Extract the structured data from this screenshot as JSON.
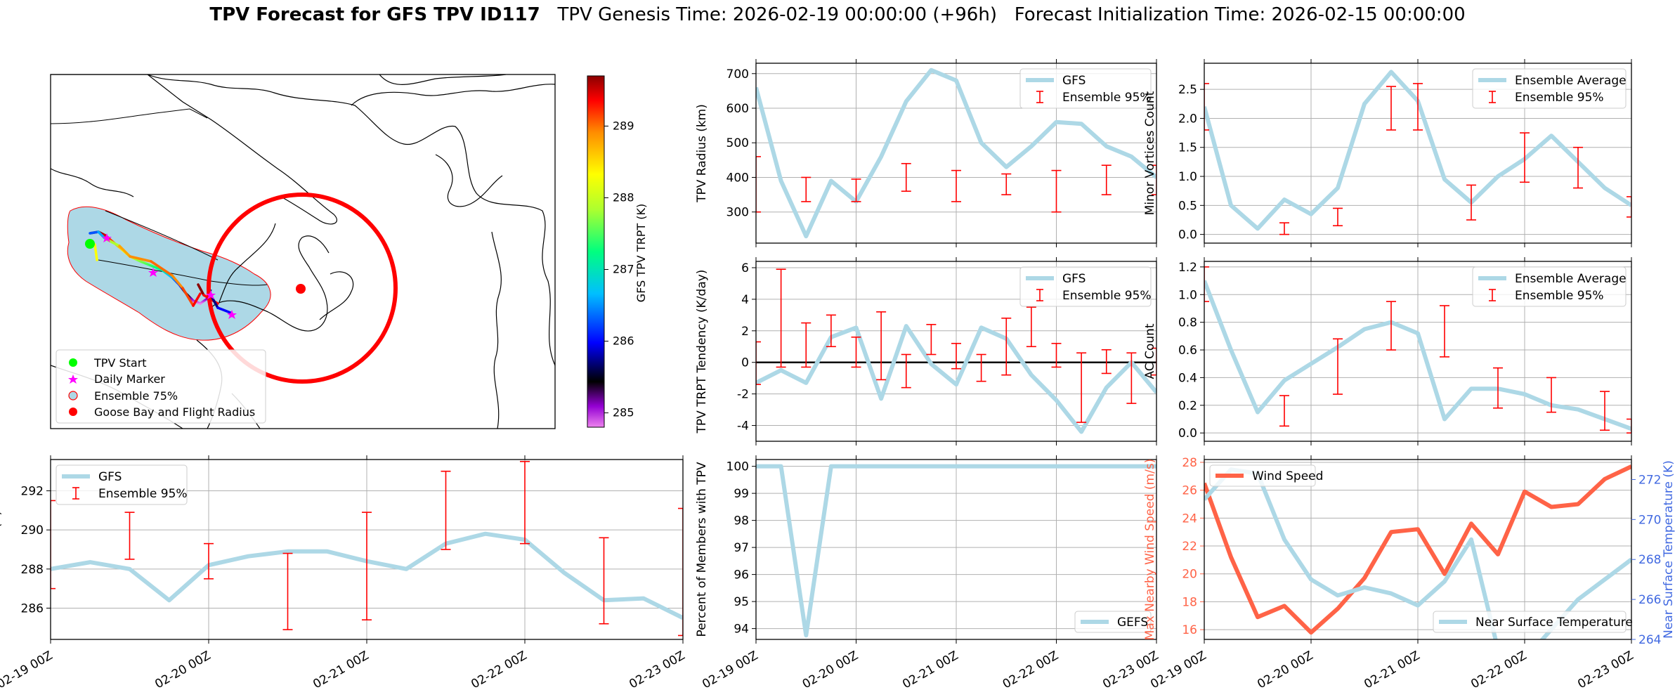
{
  "title": {
    "bold": "TPV Forecast for GFS TPV ID117",
    "genesis": "TPV Genesis Time: 2026-02-19 00:00:00 (+96h)",
    "init": "Forecast Initialization Time: 2026-02-15 00:00:00"
  },
  "colors": {
    "gfs_line": "#add8e6",
    "error_bar": "#ff0000",
    "wind_line": "#ff6347",
    "temp_axis": "#4169e1",
    "ocean": "#add8e6",
    "radius_circle": "#ff0000",
    "start_marker": "#00ff00",
    "daily_marker": "#ff00ff"
  },
  "map": {
    "legend": [
      "TPV Start",
      "Daily Marker",
      "Ensemble 75%",
      "Goose Bay and Flight Radius"
    ],
    "colorbar": {
      "label": "GFS TPV TRPT (K)",
      "ticks": [
        285,
        286,
        287,
        288,
        289
      ],
      "range": [
        284.8,
        289.7
      ]
    }
  },
  "time_axis": [
    "02-19 00Z",
    "02-20 00Z",
    "02-21 00Z",
    "02-22 00Z",
    "02-23 00Z"
  ],
  "chart_data": [
    {
      "id": "radius",
      "type": "line",
      "ylabel": "TPV Radius (km)",
      "ylim": [
        210,
        730
      ],
      "yticks": [
        300,
        400,
        500,
        600,
        700
      ],
      "series": [
        {
          "name": "GFS",
          "values": [
            660,
            390,
            230,
            390,
            330,
            460,
            620,
            710,
            680,
            500,
            430,
            490,
            560,
            555,
            490,
            460,
            400
          ]
        }
      ],
      "errorbars": {
        "name": "Ensemble 95%",
        "x": [
          0,
          2,
          4,
          6,
          8,
          10,
          12,
          14,
          16
        ],
        "low": [
          300,
          330,
          330,
          360,
          330,
          350,
          300,
          350,
          350
        ],
        "high": [
          460,
          400,
          395,
          440,
          420,
          410,
          420,
          435,
          435
        ]
      },
      "legend": [
        "GFS",
        "Ensemble 95%"
      ]
    },
    {
      "id": "minor",
      "type": "line",
      "ylabel": "Minor Vortices Count",
      "ylim": [
        -0.15,
        2.95
      ],
      "yticks": [
        0.0,
        0.5,
        1.0,
        1.5,
        2.0,
        2.5
      ],
      "series": [
        {
          "name": "Ensemble Average",
          "values": [
            2.2,
            0.5,
            0.1,
            0.6,
            0.35,
            0.8,
            2.25,
            2.8,
            2.3,
            0.95,
            0.55,
            1.0,
            1.3,
            1.7,
            1.25,
            0.8,
            0.5
          ]
        }
      ],
      "errorbars": {
        "name": "Ensemble 95%",
        "x": [
          0,
          3,
          5,
          7,
          8,
          10,
          12,
          14,
          16
        ],
        "low": [
          1.8,
          0.0,
          0.15,
          1.8,
          1.8,
          0.25,
          0.9,
          0.8,
          0.3
        ],
        "high": [
          2.6,
          0.2,
          0.45,
          2.55,
          2.6,
          0.85,
          1.75,
          1.5,
          0.65
        ]
      },
      "legend": [
        "Ensemble Average",
        "Ensemble 95%"
      ]
    },
    {
      "id": "tendency",
      "type": "line",
      "ylabel": "TPV TRPT Tendency (K/day)",
      "ylim": [
        -5.0,
        6.4
      ],
      "yticks": [
        -4,
        -2,
        0,
        2,
        4,
        6
      ],
      "series": [
        {
          "name": "GFS",
          "values": [
            -1.3,
            -0.5,
            -1.3,
            1.6,
            2.2,
            -2.3,
            2.3,
            -0.1,
            -1.4,
            2.2,
            1.5,
            -0.8,
            -2.4,
            -4.4,
            -1.6,
            0.0,
            -1.9
          ]
        }
      ],
      "errorbars": {
        "name": "Ensemble 95%",
        "x": [
          0,
          1,
          2,
          3,
          4,
          5,
          6,
          7,
          8,
          9,
          10,
          11,
          12,
          13,
          14,
          15,
          16
        ],
        "low": [
          -1.4,
          -0.3,
          -0.3,
          1.0,
          -0.3,
          -1.1,
          -1.6,
          0.5,
          -0.4,
          -1.2,
          -0.8,
          1.0,
          -0.3,
          -3.8,
          -0.7,
          -2.6,
          -0.8
        ],
        "high": [
          1.3,
          5.9,
          2.5,
          3.0,
          1.6,
          3.2,
          0.5,
          2.4,
          1.2,
          0.5,
          2.8,
          3.5,
          1.2,
          0.6,
          0.8,
          0.6,
          0.9
        ]
      },
      "zero_line": true,
      "legend": [
        "GFS",
        "Ensemble 95%"
      ]
    },
    {
      "id": "ac",
      "type": "line",
      "ylabel": "AC Count",
      "ylim": [
        -0.06,
        1.24
      ],
      "yticks": [
        0.0,
        0.2,
        0.4,
        0.6,
        0.8,
        1.0,
        1.2
      ],
      "series": [
        {
          "name": "Ensemble Average",
          "values": [
            1.1,
            0.6,
            0.15,
            0.38,
            0.5,
            0.62,
            0.75,
            0.8,
            0.72,
            0.1,
            0.32,
            0.32,
            0.28,
            0.2,
            0.17,
            0.1,
            0.03
          ]
        }
      ],
      "errorbars": {
        "name": "Ensemble 95%",
        "x": [
          0,
          3,
          5,
          7,
          9,
          11,
          13,
          15,
          16
        ],
        "low": [
          0.95,
          0.05,
          0.28,
          0.6,
          0.55,
          0.18,
          0.15,
          0.02,
          0.0
        ],
        "high": [
          1.2,
          0.27,
          0.68,
          0.95,
          0.92,
          0.47,
          0.4,
          0.3,
          0.1
        ]
      },
      "legend": [
        "Ensemble Average",
        "Ensemble 95%"
      ]
    },
    {
      "id": "trpt",
      "type": "line",
      "ylabel": "TPV TRPT (K)",
      "ylim": [
        284.4,
        293.6
      ],
      "yticks": [
        286,
        288,
        290,
        292
      ],
      "series": [
        {
          "name": "GFS",
          "values": [
            288.0,
            288.35,
            288.0,
            286.4,
            288.2,
            288.65,
            288.9,
            288.9,
            288.4,
            288.0,
            289.3,
            289.8,
            289.5,
            287.8,
            286.4,
            286.5,
            285.5
          ]
        }
      ],
      "errorbars": {
        "name": "Ensemble 95%",
        "x": [
          0,
          2,
          4,
          6,
          8,
          10,
          12,
          14,
          16
        ],
        "low": [
          287.0,
          288.5,
          287.5,
          284.9,
          285.4,
          289.0,
          289.3,
          285.2,
          284.6
        ],
        "high": [
          291.5,
          290.9,
          289.3,
          288.8,
          290.9,
          293.0,
          293.5,
          289.6,
          291.1
        ]
      },
      "legend": [
        "GFS",
        "Ensemble 95%"
      ]
    },
    {
      "id": "percent",
      "type": "line",
      "ylabel": "Percent of Members with TPV",
      "ylim": [
        93.6,
        100.25
      ],
      "yticks": [
        94,
        95,
        96,
        97,
        98,
        99,
        100
      ],
      "series": [
        {
          "name": "GEFS",
          "values": [
            100,
            100,
            93.75,
            100,
            100,
            100,
            100,
            100,
            100,
            100,
            100,
            100,
            100,
            100,
            100,
            100,
            100
          ]
        }
      ],
      "legend": [
        "GEFS"
      ]
    },
    {
      "id": "wind_temp",
      "type": "line",
      "ylabel": "Max Nearby Wind Speed (m/s)",
      "ylabel2": "Near Surface Temperature (K)",
      "ylim": [
        15.3,
        28.2
      ],
      "yticks": [
        16,
        18,
        20,
        22,
        24,
        26,
        28
      ],
      "ylim2": [
        264.0,
        273.0
      ],
      "yticks2": [
        264,
        266,
        268,
        270,
        272
      ],
      "series": [
        {
          "name": "Wind Speed",
          "axis": "left",
          "values": [
            26.5,
            21.2,
            16.9,
            17.7,
            15.8,
            17.5,
            19.7,
            23.0,
            23.2,
            20.0,
            23.6,
            21.4,
            25.9,
            24.8,
            25.0,
            26.8,
            27.7
          ]
        },
        {
          "name": "Near Surface Temperature",
          "axis": "right",
          "values": [
            271.0,
            272.5,
            272.3,
            269.0,
            267.0,
            266.2,
            266.6,
            266.3,
            265.7,
            266.9,
            269.0,
            263.5,
            263.0,
            264.5,
            266.0,
            267.0,
            268.0
          ]
        }
      ],
      "legend": [
        "Wind Speed",
        "Near Surface Temperature"
      ]
    }
  ]
}
